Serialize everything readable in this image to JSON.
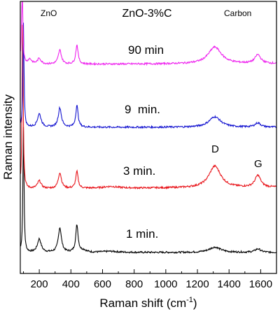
{
  "chart_data": {
    "type": "line",
    "title": "ZnO-3%C",
    "xlabel": "Raman shift (cm",
    "xlabel_sup": "-1",
    "xlabel_close": ")",
    "ylabel": "Raman intensity",
    "xlim": [
      80,
      1700
    ],
    "x_ticks": [
      200,
      400,
      600,
      800,
      1000,
      1200,
      1400,
      1600
    ],
    "y_ticks_shown": false,
    "grid": false,
    "annotations": {
      "zno": "ZnO",
      "carbon": "Carbon",
      "d_band": "D",
      "g_band": "G"
    },
    "series": [
      {
        "name": "1 min.",
        "color": "#000000",
        "baseline": 0.0,
        "peaks": [
          [
            100,
            3.6,
            4
          ],
          [
            200,
            0.38,
            14
          ],
          [
            330,
            0.7,
            12
          ],
          [
            438,
            0.78,
            9
          ],
          [
            480,
            0.06,
            20
          ],
          [
            650,
            0.03,
            60
          ],
          [
            1310,
            0.15,
            45
          ],
          [
            1582,
            0.1,
            22
          ]
        ],
        "bg_slope": 0.0
      },
      {
        "name": "3 min.",
        "color": "#e8141a",
        "baseline": 1.0,
        "peaks": [
          [
            95,
            5.0,
            4
          ],
          [
            200,
            0.22,
            14
          ],
          [
            330,
            0.45,
            12
          ],
          [
            438,
            0.48,
            9
          ],
          [
            650,
            0.05,
            60
          ],
          [
            1310,
            0.62,
            45
          ],
          [
            1582,
            0.34,
            22
          ]
        ],
        "bg_slope": 0.04
      },
      {
        "name": "9  min.",
        "color": "#1414d0",
        "baseline": 2.0,
        "peaks": [
          [
            100,
            3.0,
            4
          ],
          [
            200,
            0.38,
            14
          ],
          [
            330,
            0.55,
            12
          ],
          [
            438,
            0.62,
            9
          ],
          [
            1310,
            0.3,
            45
          ],
          [
            1582,
            0.12,
            22
          ]
        ],
        "bg_slope": 0.0
      },
      {
        "name": "90 min",
        "color": "#ee22ee",
        "baseline": 3.0,
        "peaks": [
          [
            92,
            2.8,
            4
          ],
          [
            140,
            0.14,
            14
          ],
          [
            200,
            0.16,
            14
          ],
          [
            330,
            0.4,
            12
          ],
          [
            438,
            0.55,
            9
          ],
          [
            1310,
            0.48,
            50
          ],
          [
            1582,
            0.25,
            22
          ]
        ],
        "bg_slope": 0.02
      }
    ]
  }
}
